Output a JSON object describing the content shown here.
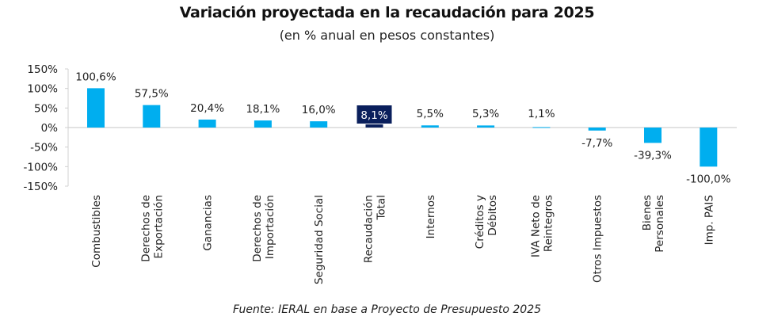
{
  "chart_data": {
    "type": "bar",
    "title": "Variación proyectada en la recaudación para 2025",
    "subtitle": "(en % anual en pesos constantes)",
    "source": "Fuente: IERAL en base a Proyecto de Presupuesto 2025",
    "xlabel": "",
    "ylabel": "",
    "ylim": [
      -150,
      150
    ],
    "yticks": [
      150,
      100,
      50,
      0,
      -50,
      -100,
      -150
    ],
    "ytick_labels": [
      "150%",
      "100%",
      "50%",
      "0%",
      "-50%",
      "-100%",
      "-150%"
    ],
    "grid": false,
    "legend": "none",
    "categories": [
      [
        "Combustibles"
      ],
      [
        "Derechos de",
        "Exportación"
      ],
      [
        "Ganancias"
      ],
      [
        "Derechos de",
        "Importación"
      ],
      [
        "Seguridad Social"
      ],
      [
        "Recaudación",
        "Total"
      ],
      [
        "Internos"
      ],
      [
        "Créditos y",
        "Débitos"
      ],
      [
        "IVA Neto de",
        "Reintegros"
      ],
      [
        "Otros Impuestos"
      ],
      [
        "Bienes",
        "Personales"
      ],
      [
        "Imp. PAIS"
      ]
    ],
    "values": [
      100.6,
      57.5,
      20.4,
      18.1,
      16.0,
      8.1,
      5.5,
      5.3,
      1.1,
      -7.7,
      -39.3,
      -100.0
    ],
    "data_labels": [
      "100,6%",
      "57,5%",
      "20,4%",
      "18,1%",
      "16,0%",
      "8,1%",
      "5,5%",
      "5,3%",
      "1,1%",
      "-7,7%",
      "-39,3%",
      "-100,0%"
    ],
    "highlight_index": 5,
    "colors": {
      "bar": "#00AEEF",
      "highlight": "#0A1F5C",
      "highlight_label_text": "#ffffff",
      "axis": "#d0d0d0"
    }
  }
}
